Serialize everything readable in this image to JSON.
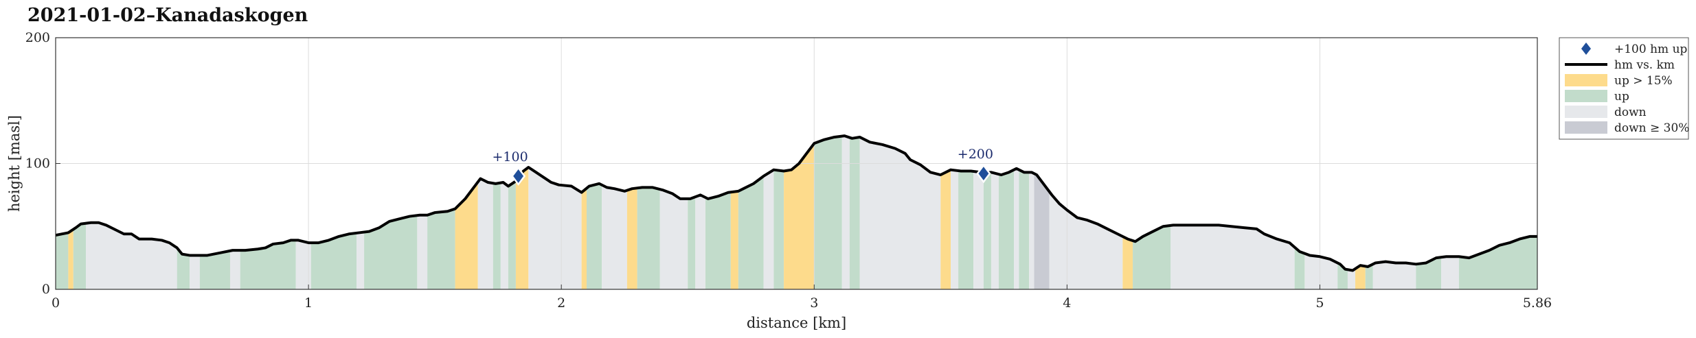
{
  "chart_data": {
    "type": "area",
    "title": "2021-01-02–Kanadaskogen",
    "xlabel": "distance [km]",
    "ylabel": "height [masl]",
    "xlim": [
      0,
      5.86
    ],
    "ylim": [
      0,
      200
    ],
    "xticks": [
      0,
      1,
      2,
      3,
      4,
      5,
      5.86
    ],
    "xtick_labels": [
      "0",
      "1",
      "2",
      "3",
      "4",
      "5",
      "5.86"
    ],
    "yticks": [
      0,
      100,
      200
    ],
    "ytick_labels": [
      "0",
      "100",
      "200"
    ],
    "grid": true,
    "legend_position": "outside-right",
    "legend": [
      {
        "key": "milestone",
        "label": "+100 hm up"
      },
      {
        "key": "profile",
        "label": "hm vs. km"
      },
      {
        "key": "steep_up",
        "label": "up > 15%"
      },
      {
        "key": "up",
        "label": "up"
      },
      {
        "key": "down",
        "label": "down"
      },
      {
        "key": "steep_down",
        "label": "down ≥ 30%"
      }
    ],
    "colors": {
      "line": "#000000",
      "steep_up": "#fddb8c",
      "up": "#c2dccb",
      "down": "#e6e8eb",
      "steep_down": "#c9cbd3",
      "marker": "#1f4f9a",
      "grid": "#dcdcdc"
    },
    "profile": [
      [
        0.0,
        43
      ],
      [
        0.05,
        45
      ],
      [
        0.08,
        49
      ],
      [
        0.1,
        52
      ],
      [
        0.14,
        53
      ],
      [
        0.17,
        53
      ],
      [
        0.2,
        51
      ],
      [
        0.24,
        47
      ],
      [
        0.27,
        44
      ],
      [
        0.3,
        44
      ],
      [
        0.33,
        40
      ],
      [
        0.38,
        40
      ],
      [
        0.42,
        39
      ],
      [
        0.45,
        37
      ],
      [
        0.48,
        33
      ],
      [
        0.5,
        28
      ],
      [
        0.53,
        27
      ],
      [
        0.6,
        27
      ],
      [
        0.65,
        29
      ],
      [
        0.7,
        31
      ],
      [
        0.75,
        31
      ],
      [
        0.8,
        32
      ],
      [
        0.83,
        33
      ],
      [
        0.86,
        36
      ],
      [
        0.9,
        37
      ],
      [
        0.93,
        39
      ],
      [
        0.96,
        39
      ],
      [
        1.0,
        37
      ],
      [
        1.04,
        37
      ],
      [
        1.08,
        39
      ],
      [
        1.12,
        42
      ],
      [
        1.16,
        44
      ],
      [
        1.2,
        45
      ],
      [
        1.24,
        46
      ],
      [
        1.28,
        49
      ],
      [
        1.32,
        54
      ],
      [
        1.36,
        56
      ],
      [
        1.4,
        58
      ],
      [
        1.44,
        59
      ],
      [
        1.47,
        59
      ],
      [
        1.5,
        61
      ],
      [
        1.55,
        62
      ],
      [
        1.58,
        64
      ],
      [
        1.62,
        72
      ],
      [
        1.65,
        80
      ],
      [
        1.68,
        88
      ],
      [
        1.71,
        85
      ],
      [
        1.74,
        84
      ],
      [
        1.77,
        85
      ],
      [
        1.79,
        82
      ],
      [
        1.82,
        86
      ],
      [
        1.85,
        94
      ],
      [
        1.87,
        97
      ],
      [
        1.9,
        93
      ],
      [
        1.93,
        89
      ],
      [
        1.96,
        85
      ],
      [
        1.99,
        83
      ],
      [
        2.04,
        82
      ],
      [
        2.08,
        77
      ],
      [
        2.11,
        82
      ],
      [
        2.15,
        84
      ],
      [
        2.18,
        81
      ],
      [
        2.21,
        80
      ],
      [
        2.25,
        78
      ],
      [
        2.28,
        80
      ],
      [
        2.32,
        81
      ],
      [
        2.36,
        81
      ],
      [
        2.4,
        79
      ],
      [
        2.44,
        76
      ],
      [
        2.47,
        72
      ],
      [
        2.51,
        72
      ],
      [
        2.55,
        75
      ],
      [
        2.58,
        72
      ],
      [
        2.62,
        74
      ],
      [
        2.66,
        77
      ],
      [
        2.7,
        78
      ],
      [
        2.72,
        80
      ],
      [
        2.76,
        84
      ],
      [
        2.8,
        90
      ],
      [
        2.84,
        95
      ],
      [
        2.88,
        94
      ],
      [
        2.91,
        95
      ],
      [
        2.94,
        100
      ],
      [
        2.97,
        108
      ],
      [
        3.0,
        116
      ],
      [
        3.04,
        119
      ],
      [
        3.08,
        121
      ],
      [
        3.12,
        122
      ],
      [
        3.15,
        120
      ],
      [
        3.18,
        121
      ],
      [
        3.22,
        117
      ],
      [
        3.27,
        115
      ],
      [
        3.32,
        112
      ],
      [
        3.36,
        108
      ],
      [
        3.38,
        103
      ],
      [
        3.42,
        99
      ],
      [
        3.46,
        93
      ],
      [
        3.5,
        91
      ],
      [
        3.54,
        95
      ],
      [
        3.58,
        94
      ],
      [
        3.62,
        94
      ],
      [
        3.66,
        93
      ],
      [
        3.7,
        93
      ],
      [
        3.74,
        91
      ],
      [
        3.77,
        93
      ],
      [
        3.8,
        96
      ],
      [
        3.83,
        93
      ],
      [
        3.86,
        93
      ],
      [
        3.88,
        91
      ],
      [
        3.91,
        83
      ],
      [
        3.94,
        75
      ],
      [
        3.97,
        68
      ],
      [
        4.0,
        63
      ],
      [
        4.04,
        57
      ],
      [
        4.08,
        55
      ],
      [
        4.12,
        52
      ],
      [
        4.16,
        48
      ],
      [
        4.2,
        44
      ],
      [
        4.24,
        40
      ],
      [
        4.27,
        38
      ],
      [
        4.3,
        42
      ],
      [
        4.34,
        46
      ],
      [
        4.38,
        50
      ],
      [
        4.42,
        51
      ],
      [
        4.47,
        51
      ],
      [
        4.53,
        51
      ],
      [
        4.6,
        51
      ],
      [
        4.65,
        50
      ],
      [
        4.7,
        49
      ],
      [
        4.75,
        48
      ],
      [
        4.78,
        44
      ],
      [
        4.83,
        40
      ],
      [
        4.88,
        37
      ],
      [
        4.92,
        30
      ],
      [
        4.96,
        27
      ],
      [
        5.0,
        26
      ],
      [
        5.04,
        24
      ],
      [
        5.08,
        20
      ],
      [
        5.1,
        16
      ],
      [
        5.13,
        15
      ],
      [
        5.16,
        19
      ],
      [
        5.19,
        18
      ],
      [
        5.22,
        21
      ],
      [
        5.26,
        22
      ],
      [
        5.3,
        21
      ],
      [
        5.34,
        21
      ],
      [
        5.38,
        20
      ],
      [
        5.42,
        21
      ],
      [
        5.46,
        25
      ],
      [
        5.5,
        26
      ],
      [
        5.55,
        26
      ],
      [
        5.59,
        25
      ],
      [
        5.63,
        28
      ],
      [
        5.67,
        31
      ],
      [
        5.71,
        35
      ],
      [
        5.75,
        37
      ],
      [
        5.79,
        40
      ],
      [
        5.83,
        42
      ],
      [
        5.86,
        42
      ]
    ],
    "bands": [
      {
        "start": 0.0,
        "end": 0.05,
        "type": "up"
      },
      {
        "start": 0.05,
        "end": 0.07,
        "type": "steep_up"
      },
      {
        "start": 0.07,
        "end": 0.12,
        "type": "up"
      },
      {
        "start": 0.12,
        "end": 0.48,
        "type": "down"
      },
      {
        "start": 0.48,
        "end": 0.53,
        "type": "up"
      },
      {
        "start": 0.53,
        "end": 0.57,
        "type": "down"
      },
      {
        "start": 0.57,
        "end": 0.69,
        "type": "up"
      },
      {
        "start": 0.69,
        "end": 0.73,
        "type": "down"
      },
      {
        "start": 0.73,
        "end": 0.95,
        "type": "up"
      },
      {
        "start": 0.95,
        "end": 1.01,
        "type": "down"
      },
      {
        "start": 1.01,
        "end": 1.19,
        "type": "up"
      },
      {
        "start": 1.19,
        "end": 1.22,
        "type": "down"
      },
      {
        "start": 1.22,
        "end": 1.43,
        "type": "up"
      },
      {
        "start": 1.43,
        "end": 1.47,
        "type": "down"
      },
      {
        "start": 1.47,
        "end": 1.58,
        "type": "up"
      },
      {
        "start": 1.58,
        "end": 1.67,
        "type": "steep_up"
      },
      {
        "start": 1.67,
        "end": 1.73,
        "type": "down"
      },
      {
        "start": 1.73,
        "end": 1.76,
        "type": "up"
      },
      {
        "start": 1.76,
        "end": 1.79,
        "type": "down"
      },
      {
        "start": 1.79,
        "end": 1.82,
        "type": "up"
      },
      {
        "start": 1.82,
        "end": 1.87,
        "type": "steep_up"
      },
      {
        "start": 1.87,
        "end": 2.08,
        "type": "down"
      },
      {
        "start": 2.08,
        "end": 2.1,
        "type": "steep_up"
      },
      {
        "start": 2.1,
        "end": 2.16,
        "type": "up"
      },
      {
        "start": 2.16,
        "end": 2.26,
        "type": "down"
      },
      {
        "start": 2.26,
        "end": 2.3,
        "type": "steep_up"
      },
      {
        "start": 2.3,
        "end": 2.39,
        "type": "up"
      },
      {
        "start": 2.39,
        "end": 2.5,
        "type": "down"
      },
      {
        "start": 2.5,
        "end": 2.53,
        "type": "up"
      },
      {
        "start": 2.53,
        "end": 2.57,
        "type": "down"
      },
      {
        "start": 2.57,
        "end": 2.67,
        "type": "up"
      },
      {
        "start": 2.67,
        "end": 2.7,
        "type": "steep_up"
      },
      {
        "start": 2.7,
        "end": 2.8,
        "type": "up"
      },
      {
        "start": 2.8,
        "end": 2.84,
        "type": "down"
      },
      {
        "start": 2.84,
        "end": 2.88,
        "type": "up"
      },
      {
        "start": 2.88,
        "end": 3.0,
        "type": "steep_up"
      },
      {
        "start": 3.0,
        "end": 3.11,
        "type": "up"
      },
      {
        "start": 3.11,
        "end": 3.14,
        "type": "down"
      },
      {
        "start": 3.14,
        "end": 3.18,
        "type": "up"
      },
      {
        "start": 3.18,
        "end": 3.5,
        "type": "down"
      },
      {
        "start": 3.5,
        "end": 3.54,
        "type": "steep_up"
      },
      {
        "start": 3.54,
        "end": 3.57,
        "type": "down"
      },
      {
        "start": 3.57,
        "end": 3.63,
        "type": "up"
      },
      {
        "start": 3.63,
        "end": 3.67,
        "type": "down"
      },
      {
        "start": 3.67,
        "end": 3.7,
        "type": "up"
      },
      {
        "start": 3.7,
        "end": 3.73,
        "type": "down"
      },
      {
        "start": 3.73,
        "end": 3.79,
        "type": "up"
      },
      {
        "start": 3.79,
        "end": 3.81,
        "type": "down"
      },
      {
        "start": 3.81,
        "end": 3.85,
        "type": "up"
      },
      {
        "start": 3.85,
        "end": 3.87,
        "type": "down"
      },
      {
        "start": 3.87,
        "end": 3.93,
        "type": "steep_down"
      },
      {
        "start": 3.93,
        "end": 4.22,
        "type": "down"
      },
      {
        "start": 4.22,
        "end": 4.26,
        "type": "steep_up"
      },
      {
        "start": 4.26,
        "end": 4.41,
        "type": "up"
      },
      {
        "start": 4.41,
        "end": 4.9,
        "type": "down"
      },
      {
        "start": 4.9,
        "end": 4.94,
        "type": "up"
      },
      {
        "start": 4.94,
        "end": 5.07,
        "type": "down"
      },
      {
        "start": 5.07,
        "end": 5.11,
        "type": "up"
      },
      {
        "start": 5.11,
        "end": 5.14,
        "type": "down"
      },
      {
        "start": 5.14,
        "end": 5.18,
        "type": "steep_up"
      },
      {
        "start": 5.18,
        "end": 5.21,
        "type": "up"
      },
      {
        "start": 5.21,
        "end": 5.38,
        "type": "down"
      },
      {
        "start": 5.38,
        "end": 5.48,
        "type": "up"
      },
      {
        "start": 5.48,
        "end": 5.55,
        "type": "down"
      },
      {
        "start": 5.55,
        "end": 5.86,
        "type": "up"
      }
    ],
    "milestones": [
      {
        "x": 1.83,
        "y": 90,
        "label": "+100"
      },
      {
        "x": 3.67,
        "y": 92,
        "label": "+200"
      }
    ]
  }
}
